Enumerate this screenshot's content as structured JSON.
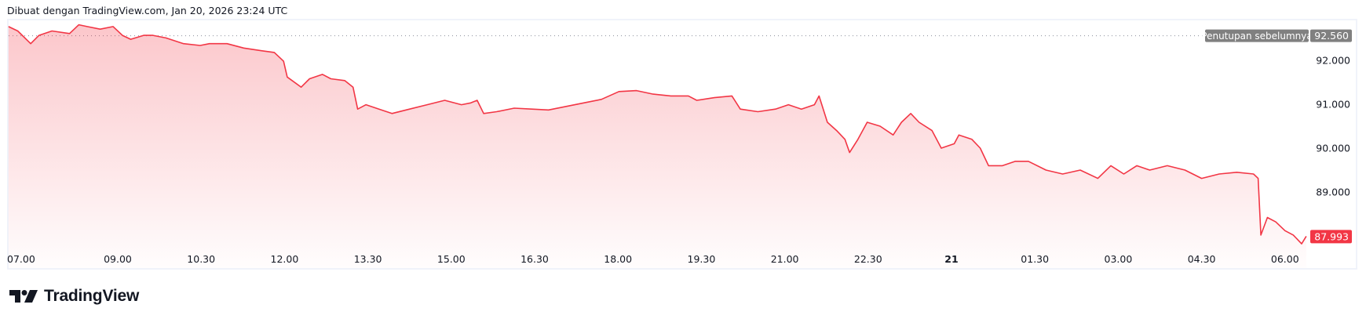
{
  "header": {
    "title": "Dibuat dengan TradingView.com, Jan 20, 2026 23:24 UTC"
  },
  "footer": {
    "logo": "TradingView"
  },
  "colors": {
    "line": "#f23645",
    "prev_close_badge": "#808080",
    "last_price_badge": "#f23645"
  },
  "chart_data": {
    "type": "area",
    "ylim": [
      87.7,
      92.85
    ],
    "y_ticks": [
      "92.000",
      "91.000",
      "90.000",
      "89.000"
    ],
    "y_tick_values": [
      92,
      91,
      90,
      89
    ],
    "x_ticks": [
      {
        "label": "07.00",
        "time": "01-20 07:00"
      },
      {
        "label": "09.00",
        "time": "01-20 09:00"
      },
      {
        "label": "10.30",
        "time": "01-20 10:30"
      },
      {
        "label": "12.00",
        "time": "01-20 12:00"
      },
      {
        "label": "13.30",
        "time": "01-20 13:30"
      },
      {
        "label": "15.00",
        "time": "01-20 15:00"
      },
      {
        "label": "16.30",
        "time": "01-20 16:30"
      },
      {
        "label": "18.00",
        "time": "01-20 18:00"
      },
      {
        "label": "19.30",
        "time": "01-20 19:30"
      },
      {
        "label": "21.00",
        "time": "01-20 21:00"
      },
      {
        "label": "22.30",
        "time": "01-20 22:30"
      },
      {
        "label": "21",
        "time": "01-21 00:00",
        "bold": true
      },
      {
        "label": "01.30",
        "time": "01-21 01:30"
      },
      {
        "label": "03.00",
        "time": "01-21 03:00"
      },
      {
        "label": "04.30",
        "time": "01-21 04:30"
      },
      {
        "label": "06.00",
        "time": "01-21 06:00"
      }
    ],
    "previous_close": {
      "label": "Penutupan sebelumnya",
      "value": 92.56,
      "text": "92.560"
    },
    "last_price": {
      "value": 87.993,
      "text": "87.993"
    },
    "grid": false,
    "points": [
      [
        "01-20 07:02",
        92.77
      ],
      [
        "01-20 07:12",
        92.67
      ],
      [
        "01-20 07:26",
        92.38
      ],
      [
        "01-20 07:35",
        92.57
      ],
      [
        "01-20 07:49",
        92.67
      ],
      [
        "01-20 08:08",
        92.61
      ],
      [
        "01-20 08:18",
        92.81
      ],
      [
        "01-20 08:27",
        92.77
      ],
      [
        "01-20 08:41",
        92.71
      ],
      [
        "01-20 08:55",
        92.77
      ],
      [
        "01-20 09:05",
        92.57
      ],
      [
        "01-20 09:14",
        92.48
      ],
      [
        "01-20 09:28",
        92.57
      ],
      [
        "01-20 09:38",
        92.57
      ],
      [
        "01-20 09:52",
        92.51
      ],
      [
        "01-20 10:11",
        92.38
      ],
      [
        "01-20 10:29",
        92.34
      ],
      [
        "01-20 10:39",
        92.38
      ],
      [
        "01-20 10:58",
        92.38
      ],
      [
        "01-20 11:16",
        92.28
      ],
      [
        "01-20 11:35",
        92.22
      ],
      [
        "01-20 11:49",
        92.18
      ],
      [
        "01-20 11:59",
        91.98
      ],
      [
        "01-20 12:03",
        91.62
      ],
      [
        "01-20 12:18",
        91.39
      ],
      [
        "01-20 12:27",
        91.58
      ],
      [
        "01-20 12:41",
        91.68
      ],
      [
        "01-20 12:50",
        91.58
      ],
      [
        "01-20 13:05",
        91.54
      ],
      [
        "01-20 13:14",
        91.39
      ],
      [
        "01-20 13:19",
        90.89
      ],
      [
        "01-20 13:28",
        90.99
      ],
      [
        "01-20 13:42",
        90.89
      ],
      [
        "01-20 13:56",
        90.79
      ],
      [
        "01-20 14:15",
        90.89
      ],
      [
        "01-20 14:34",
        90.99
      ],
      [
        "01-20 14:53",
        91.09
      ],
      [
        "01-20 15:11",
        90.99
      ],
      [
        "01-20 15:21",
        91.03
      ],
      [
        "01-20 15:28",
        91.09
      ],
      [
        "01-20 15:35",
        90.79
      ],
      [
        "01-20 15:49",
        90.83
      ],
      [
        "01-20 16:08",
        90.91
      ],
      [
        "01-20 16:27",
        90.89
      ],
      [
        "01-20 16:45",
        90.87
      ],
      [
        "01-20 17:04",
        90.95
      ],
      [
        "01-20 17:23",
        91.03
      ],
      [
        "01-20 17:42",
        91.11
      ],
      [
        "01-20 18:01",
        91.29
      ],
      [
        "01-20 18:20",
        91.31
      ],
      [
        "01-20 18:38",
        91.23
      ],
      [
        "01-20 18:57",
        91.19
      ],
      [
        "01-20 19:16",
        91.19
      ],
      [
        "01-20 19:25",
        91.09
      ],
      [
        "01-20 19:44",
        91.15
      ],
      [
        "01-20 20:03",
        91.19
      ],
      [
        "01-20 20:12",
        90.89
      ],
      [
        "01-20 20:31",
        90.83
      ],
      [
        "01-20 20:50",
        90.89
      ],
      [
        "01-20 21:04",
        90.99
      ],
      [
        "01-20 21:18",
        90.89
      ],
      [
        "01-20 21:32",
        90.99
      ],
      [
        "01-20 21:37",
        91.19
      ],
      [
        "01-20 21:46",
        90.59
      ],
      [
        "01-20 21:56",
        90.4
      ],
      [
        "01-20 22:05",
        90.2
      ],
      [
        "01-20 22:10",
        89.9
      ],
      [
        "01-20 22:19",
        90.2
      ],
      [
        "01-20 22:29",
        90.59
      ],
      [
        "01-20 22:43",
        90.5
      ],
      [
        "01-20 22:57",
        90.3
      ],
      [
        "01-20 23:06",
        90.59
      ],
      [
        "01-20 23:16",
        90.79
      ],
      [
        "01-20 23:25",
        90.59
      ],
      [
        "01-20 23:39",
        90.4
      ],
      [
        "01-20 23:49",
        90.0
      ],
      [
        "01-21 00:03",
        90.1
      ],
      [
        "01-21 00:08",
        90.3
      ],
      [
        "01-21 00:22",
        90.2
      ],
      [
        "01-21 00:31",
        90.0
      ],
      [
        "01-21 00:40",
        89.6
      ],
      [
        "01-21 00:55",
        89.6
      ],
      [
        "01-21 01:09",
        89.7
      ],
      [
        "01-21 01:23",
        89.7
      ],
      [
        "01-21 01:42",
        89.5
      ],
      [
        "01-21 02:00",
        89.41
      ],
      [
        "01-21 02:19",
        89.5
      ],
      [
        "01-21 02:38",
        89.31
      ],
      [
        "01-21 02:52",
        89.6
      ],
      [
        "01-21 03:06",
        89.41
      ],
      [
        "01-21 03:20",
        89.6
      ],
      [
        "01-21 03:34",
        89.5
      ],
      [
        "01-21 03:53",
        89.6
      ],
      [
        "01-21 04:12",
        89.5
      ],
      [
        "01-21 04:30",
        89.31
      ],
      [
        "01-21 04:49",
        89.41
      ],
      [
        "01-21 05:08",
        89.45
      ],
      [
        "01-21 05:26",
        89.41
      ],
      [
        "01-21 05:31",
        89.31
      ],
      [
        "01-21 05:34",
        88.02
      ],
      [
        "01-21 05:41",
        88.42
      ],
      [
        "01-21 05:50",
        88.32
      ],
      [
        "01-21 06:00",
        88.12
      ],
      [
        "01-21 06:09",
        88.02
      ],
      [
        "01-21 06:18",
        87.82
      ],
      [
        "01-21 06:23",
        87.993
      ]
    ]
  }
}
